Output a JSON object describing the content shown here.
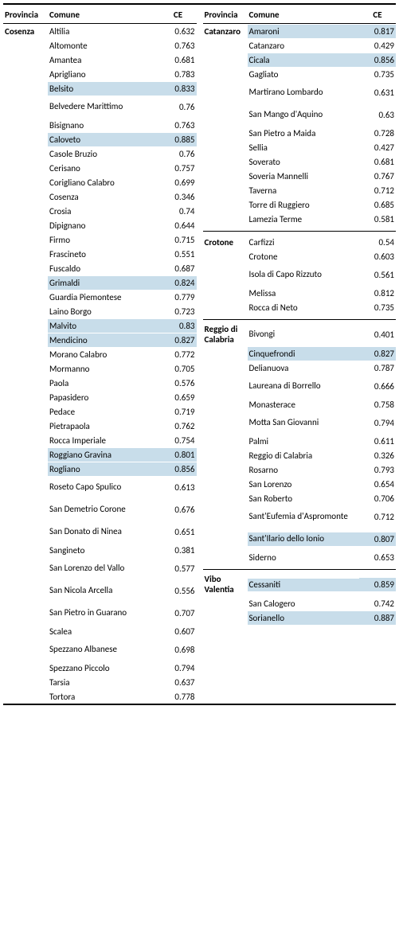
{
  "headers": {
    "prov": "Provincia",
    "com": "Comune",
    "ce": "CE"
  },
  "highlight_color": "#c8ddea",
  "left": {
    "province": "Cosenza",
    "rows": [
      {
        "com": "Altilia",
        "ce": "0.632"
      },
      {
        "com": "Altomonte",
        "ce": "0.763"
      },
      {
        "com": "Amantea",
        "ce": "0.681"
      },
      {
        "com": "Aprigliano",
        "ce": "0.783"
      },
      {
        "com": "Belsito",
        "ce": "0.833",
        "hl": true
      },
      {
        "com": "Belvedere Marittimo",
        "ce": "0.76",
        "tall": true
      },
      {
        "com": "Bisignano",
        "ce": "0.763"
      },
      {
        "com": "Caloveto",
        "ce": "0.885",
        "hl": true
      },
      {
        "com": "Casole Bruzio",
        "ce": "0.76"
      },
      {
        "com": "Cerisano",
        "ce": "0.757"
      },
      {
        "com": "Corigliano Calabro",
        "ce": "0.699"
      },
      {
        "com": "Cosenza",
        "ce": "0.346"
      },
      {
        "com": "Crosia",
        "ce": "0.74"
      },
      {
        "com": "Dipignano",
        "ce": "0.644"
      },
      {
        "com": "Firmo",
        "ce": "0.715"
      },
      {
        "com": "Frascineto",
        "ce": "0.551"
      },
      {
        "com": "Fuscaldo",
        "ce": "0.687"
      },
      {
        "com": "Grimaldi",
        "ce": "0.824",
        "hl": true
      },
      {
        "com": "Guardia Piemontese",
        "ce": "0.779"
      },
      {
        "com": "Laino Borgo",
        "ce": "0.723"
      },
      {
        "com": "Malvito",
        "ce": "0.83",
        "hl": true
      },
      {
        "com": "Mendicino",
        "ce": "0.827",
        "hl": true
      },
      {
        "com": "Morano Calabro",
        "ce": "0.772"
      },
      {
        "com": "Mormanno",
        "ce": "0.705"
      },
      {
        "com": "Paola",
        "ce": "0.576"
      },
      {
        "com": "Papasidero",
        "ce": "0.659"
      },
      {
        "com": "Pedace",
        "ce": "0.719"
      },
      {
        "com": "Pietrapaola",
        "ce": "0.762"
      },
      {
        "com": "Rocca Imperiale",
        "ce": "0.754"
      },
      {
        "com": "Roggiano Gravina",
        "ce": "0.801",
        "hl": true
      },
      {
        "com": "Rogliano",
        "ce": "0.856",
        "hl": true
      },
      {
        "com": "Roseto Capo Spulico",
        "ce": "0.613",
        "tall": true
      },
      {
        "com": "San Demetrio Corone",
        "ce": "0.676",
        "tall": true
      },
      {
        "com": "San Donato di Ninea",
        "ce": "0.651",
        "tall": true
      },
      {
        "com": "Sangineto",
        "ce": "0.381"
      },
      {
        "com": "San Lorenzo del Vallo",
        "ce": "0.577",
        "tall": true
      },
      {
        "com": "San Nicola Arcella",
        "ce": "0.556",
        "tall": true
      },
      {
        "com": "San Pietro in Guarano",
        "ce": "0.707",
        "tall": true
      },
      {
        "com": "Scalea",
        "ce": "0.607"
      },
      {
        "com": "Spezzano Albanese",
        "ce": "0.698",
        "tall": true
      },
      {
        "com": "Spezzano Piccolo",
        "ce": "0.794"
      },
      {
        "com": "Tarsia",
        "ce": "0.637"
      },
      {
        "com": "Tortora",
        "ce": "0.778"
      }
    ]
  },
  "right": [
    {
      "province": "Catanzaro",
      "rows": [
        {
          "com": "Amaroni",
          "ce": "0.817",
          "hl": true
        },
        {
          "com": "Catanzaro",
          "ce": "0.429"
        },
        {
          "com": "Cicala",
          "ce": "0.856",
          "hl": true
        },
        {
          "com": "Gagliato",
          "ce": "0.735"
        },
        {
          "com": "Martirano Lombardo",
          "ce": "0.631",
          "tall": true
        },
        {
          "com": "San Mango d'Aquino",
          "ce": "0.63",
          "tall": true
        },
        {
          "com": "San Pietro a Maida",
          "ce": "0.728"
        },
        {
          "com": "Sellia",
          "ce": "0.427"
        },
        {
          "com": "Soverato",
          "ce": "0.681"
        },
        {
          "com": "Soveria Mannelli",
          "ce": "0.767"
        },
        {
          "com": "Taverna",
          "ce": "0.712"
        },
        {
          "com": "Torre di Ruggiero",
          "ce": "0.685"
        },
        {
          "com": "Lamezia Terme",
          "ce": "0.581"
        }
      ]
    },
    {
      "province": "Crotone",
      "rows": [
        {
          "com": "Carfizzi",
          "ce": "0.54"
        },
        {
          "com": "Crotone",
          "ce": "0.603"
        },
        {
          "com": "Isola di Capo Rizzuto",
          "ce": "0.561",
          "tall": true
        },
        {
          "com": "Melissa",
          "ce": "0.812"
        },
        {
          "com": "Rocca di Neto",
          "ce": "0.735"
        }
      ]
    },
    {
      "province": "Reggio di Calabria",
      "prov_tall": true,
      "rows": [
        {
          "com": "Bivongi",
          "ce": "0.401"
        },
        {
          "com": "Cinquefrondi",
          "ce": "0.827",
          "hl": true
        },
        {
          "com": "Delianuova",
          "ce": "0.787"
        },
        {
          "com": "Laureana di Borrello",
          "ce": "0.666",
          "tall": true
        },
        {
          "com": "Monasterace",
          "ce": "0.758"
        },
        {
          "com": "Motta San Giovanni",
          "ce": "0.794",
          "tall": true
        },
        {
          "com": "Palmi",
          "ce": "0.611"
        },
        {
          "com": "Reggio di Calabria",
          "ce": "0.326"
        },
        {
          "com": "Rosarno",
          "ce": "0.793"
        },
        {
          "com": "San Lorenzo",
          "ce": "0.654"
        },
        {
          "com": "San Roberto",
          "ce": "0.706"
        },
        {
          "com": "Sant'Eufemia d'Aspromonte",
          "ce": "0.712",
          "tall": true
        },
        {
          "com": "Sant'Ilario dello Ionio",
          "ce": "0.807",
          "hl": true,
          "tall": true
        },
        {
          "com": "Siderno",
          "ce": "0.653"
        }
      ]
    },
    {
      "province": "Vibo Valentia",
      "prov_tall": true,
      "rows": [
        {
          "com": "Cessaniti",
          "ce": "0.859",
          "hl": true
        },
        {
          "com": "San Calogero",
          "ce": "0.742"
        },
        {
          "com": "Sorianello",
          "ce": "0.887",
          "hl": true
        }
      ]
    }
  ]
}
